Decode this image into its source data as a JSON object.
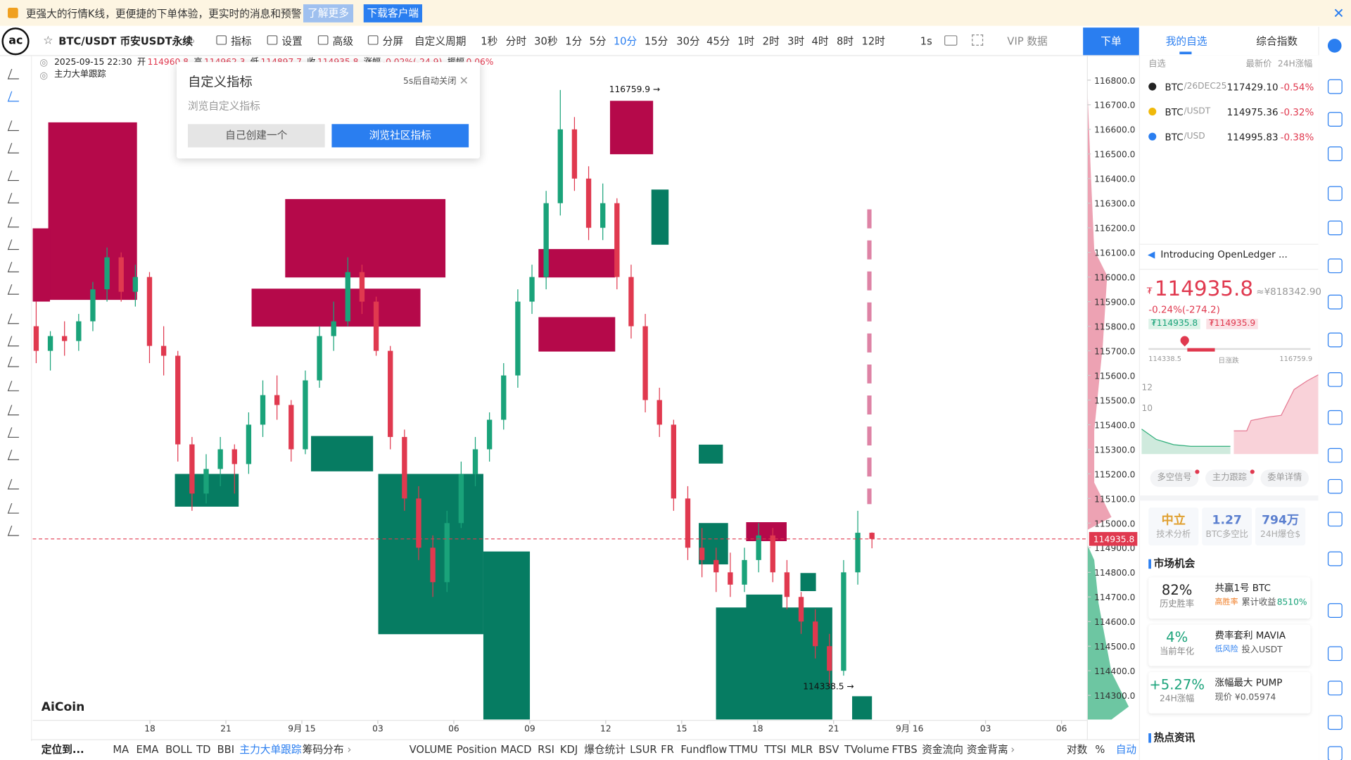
{
  "banner": {
    "text": "更强大的行情K线，更便捷的下单体验，更实时的消息和预警",
    "learn_more": "了解更多",
    "download": "下载客户端"
  },
  "toolbar": {
    "symbol": "BTC/USDT 币安USDT永续",
    "items": [
      "指标",
      "设置",
      "高级",
      "分屏"
    ],
    "custom_period": "自定义周期",
    "periods": [
      "1秒",
      "分时",
      "30秒",
      "1分",
      "5分",
      "10分",
      "15分",
      "30分",
      "45分",
      "1时",
      "2时",
      "3时",
      "4时",
      "8时",
      "12时"
    ],
    "interval": "1s",
    "vip": "VIP 数据",
    "order": "下单"
  },
  "tabs": [
    "我的自选",
    "综合指数"
  ],
  "legend": {
    "time": "2025-09-15 22:30",
    "fields": [
      [
        "开",
        "114960.8"
      ],
      [
        "高",
        "114962.3"
      ],
      [
        "低",
        "114897.7"
      ],
      [
        "收",
        "114935.8"
      ],
      [
        "涨幅",
        "-0.02%(-24.9)"
      ],
      [
        "振幅",
        "0.06%"
      ]
    ],
    "indicator": "主力大单跟踪"
  },
  "popup": {
    "title": "自定义指标",
    "countdown": "5s后自动关闭",
    "subtitle": "浏览自定义指标",
    "create": "自己创建一个",
    "browse": "浏览社区指标"
  },
  "chart": {
    "price_ticks": [
      {
        "value": 116800,
        "label": "116800.0"
      },
      {
        "value": 116700,
        "label": "116700.0"
      },
      {
        "value": 116600,
        "label": "116600.0"
      },
      {
        "value": 116500,
        "label": "116500.0"
      },
      {
        "value": 116400,
        "label": "116400.0"
      },
      {
        "value": 116300,
        "label": "116300.0"
      },
      {
        "value": 116200,
        "label": "116200.0"
      },
      {
        "value": 116100,
        "label": "116100.0"
      },
      {
        "value": 116000,
        "label": "116000.0"
      },
      {
        "value": 115900,
        "label": "115900.0"
      },
      {
        "value": 115800,
        "label": "115800.0"
      },
      {
        "value": 115700,
        "label": "115700.0"
      },
      {
        "value": 115600,
        "label": "115600.0"
      },
      {
        "value": 115500,
        "label": "115500.0"
      },
      {
        "value": 115400,
        "label": "115400.0"
      },
      {
        "value": 115300,
        "label": "115300.0"
      },
      {
        "value": 115200,
        "label": "115200.0"
      },
      {
        "value": 115100,
        "label": "115100.0"
      },
      {
        "value": 115000,
        "label": "115000.0"
      },
      {
        "value": 114900,
        "label": "114900.0"
      },
      {
        "value": 114800,
        "label": "114800.0"
      },
      {
        "value": 114700,
        "label": "114700.0"
      },
      {
        "value": 114600,
        "label": "114600.0"
      },
      {
        "value": 114500,
        "label": "114500.0"
      },
      {
        "value": 114400,
        "label": "114400.0"
      },
      {
        "value": 114300,
        "label": "114300.0"
      }
    ],
    "candles": [
      [
        115800,
        115900,
        115650,
        115700
      ],
      [
        115700,
        115780,
        115620,
        115760
      ],
      [
        115760,
        115820,
        115680,
        115740
      ],
      [
        115740,
        115850,
        115700,
        115820
      ],
      [
        115820,
        115980,
        115780,
        115950
      ],
      [
        115950,
        116120,
        115900,
        116080
      ],
      [
        116080,
        116100,
        115900,
        115940
      ],
      [
        115940,
        116050,
        115880,
        116000
      ],
      [
        116000,
        116020,
        115650,
        115720
      ],
      [
        115720,
        115800,
        115600,
        115680
      ],
      [
        115680,
        115700,
        115250,
        115320
      ],
      [
        115320,
        115350,
        115050,
        115120
      ],
      [
        115120,
        115280,
        115080,
        115220
      ],
      [
        115220,
        115350,
        115150,
        115300
      ],
      [
        115300,
        115320,
        115120,
        115240
      ],
      [
        115240,
        115450,
        115200,
        115400
      ],
      [
        115400,
        115580,
        115350,
        115520
      ],
      [
        115520,
        115600,
        115420,
        115480
      ],
      [
        115480,
        115500,
        115250,
        115300
      ],
      [
        115300,
        115620,
        115280,
        115580
      ],
      [
        115580,
        115800,
        115550,
        115760
      ],
      [
        115760,
        115900,
        115700,
        115820
      ],
      [
        115820,
        116080,
        115800,
        116020
      ],
      [
        116020,
        116050,
        115850,
        115900
      ],
      [
        115900,
        115920,
        115680,
        115700
      ],
      [
        115700,
        115720,
        115300,
        115350
      ],
      [
        115350,
        115380,
        115050,
        115100
      ],
      [
        115100,
        115150,
        114850,
        114900
      ],
      [
        114900,
        114950,
        114700,
        114760
      ],
      [
        114760,
        115050,
        114720,
        115000
      ],
      [
        115000,
        115250,
        114980,
        115200
      ],
      [
        115200,
        115350,
        115150,
        115300
      ],
      [
        115300,
        115450,
        115250,
        115420
      ],
      [
        115420,
        115650,
        115380,
        115600
      ],
      [
        115600,
        115950,
        115550,
        115900
      ],
      [
        115900,
        116050,
        115850,
        116000
      ],
      [
        116000,
        116350,
        115950,
        116300
      ],
      [
        116300,
        116759.9,
        116250,
        116600
      ],
      [
        116600,
        116650,
        116350,
        116400
      ],
      [
        116400,
        116450,
        116150,
        116200
      ],
      [
        116200,
        116380,
        116150,
        116300
      ],
      [
        116300,
        116320,
        115950,
        116000
      ],
      [
        116000,
        116050,
        115750,
        115800
      ],
      [
        115800,
        115850,
        115450,
        115500
      ],
      [
        115500,
        115550,
        115350,
        115400
      ],
      [
        115400,
        115420,
        115050,
        115100
      ],
      [
        115100,
        115150,
        114850,
        114900
      ],
      [
        114900,
        114980,
        114780,
        114850
      ],
      [
        114850,
        114900,
        114720,
        114800
      ],
      [
        114800,
        114880,
        114700,
        114750
      ],
      [
        114750,
        114900,
        114720,
        114850
      ],
      [
        114850,
        115000,
        114800,
        114950
      ],
      [
        114950,
        114980,
        114760,
        114800
      ],
      [
        114800,
        114850,
        114650,
        114700
      ],
      [
        114700,
        114720,
        114550,
        114600
      ],
      [
        114600,
        114650,
        114450,
        114500
      ],
      [
        114500,
        114550,
        114338.5,
        114400
      ],
      [
        114400,
        114850,
        114380,
        114800
      ],
      [
        114800,
        115050,
        114750,
        114960.8
      ],
      [
        114960.8,
        114962.3,
        114897.7,
        114935.8
      ]
    ],
    "last_price": 114935.8,
    "high_note": "116759.9 →",
    "low_note": "114338.5 →",
    "time_labels": [
      "18",
      "21",
      "9月 15",
      "03",
      "06",
      "09",
      "12",
      "15",
      "18",
      "21",
      "9月 16",
      "03",
      "06"
    ],
    "watermark": "AiCoin"
  },
  "bottom_bar": {
    "locate": "定位到...",
    "main": [
      "MA",
      "EMA",
      "BOLL",
      "TD",
      "BBI",
      "主力大单跟踪",
      "筹码分布"
    ],
    "sub": [
      "VOLUME",
      "Position",
      "MACD",
      "RSI",
      "KDJ",
      "爆仓统计",
      "LSUR",
      "FR",
      "Fundflow",
      "TTMU",
      "TTSI",
      "MLR",
      "BSV",
      "TVolume",
      "FTBS",
      "资金流向",
      "资金背离"
    ],
    "right": [
      "对数",
      "%",
      "自动"
    ]
  },
  "watchlist": {
    "header": [
      "自选",
      "最新价",
      "24H涨幅"
    ],
    "rows": [
      {
        "base": "BTC",
        "quote": "/26DEC25",
        "price": "117429.10",
        "change": "-0.54%"
      },
      {
        "base": "BTC",
        "quote": "/USDT",
        "price": "114975.36",
        "change": "-0.32%"
      },
      {
        "base": "BTC",
        "quote": "/USD",
        "price": "114995.83",
        "change": "-0.38%"
      }
    ]
  },
  "news": "Introducing OpenLedger ...",
  "quote": {
    "currency": "₮",
    "price": "114935.8",
    "cny": "≈¥818342.90",
    "change": "-0.24%(-274.2)",
    "bid": "₮114935.8",
    "ask": "₮114935.9",
    "low": "114338.5",
    "range_label": "日涨跌",
    "high": "116759.9",
    "chart_ticks": [
      "12",
      "10"
    ],
    "buttons": [
      "多空信号",
      "主力跟踪",
      "委单详情"
    ]
  },
  "stats": [
    {
      "value": "中立",
      "label": "技术分析"
    },
    {
      "value": "1.27",
      "label": "BTC多空比"
    },
    {
      "value": "794万",
      "label": "24H爆仓$"
    }
  ],
  "opportunities": {
    "title": "市场机会",
    "items": [
      {
        "value": "82%",
        "label": "历史胜率",
        "name": "共赢1号 BTC",
        "tag": "高胜率",
        "detail": "累计收益",
        "detail_value": "8510%"
      },
      {
        "value": "4%",
        "label": "当前年化",
        "name": "费率套利 MAVIA",
        "tag": "低风险",
        "detail": "投入USDT"
      },
      {
        "value": "+5.27%",
        "label": "24H涨幅",
        "name": "涨幅最大 PUMP",
        "detail": "现价 ¥0.05974"
      }
    ]
  },
  "hot_news": "热点资讯"
}
